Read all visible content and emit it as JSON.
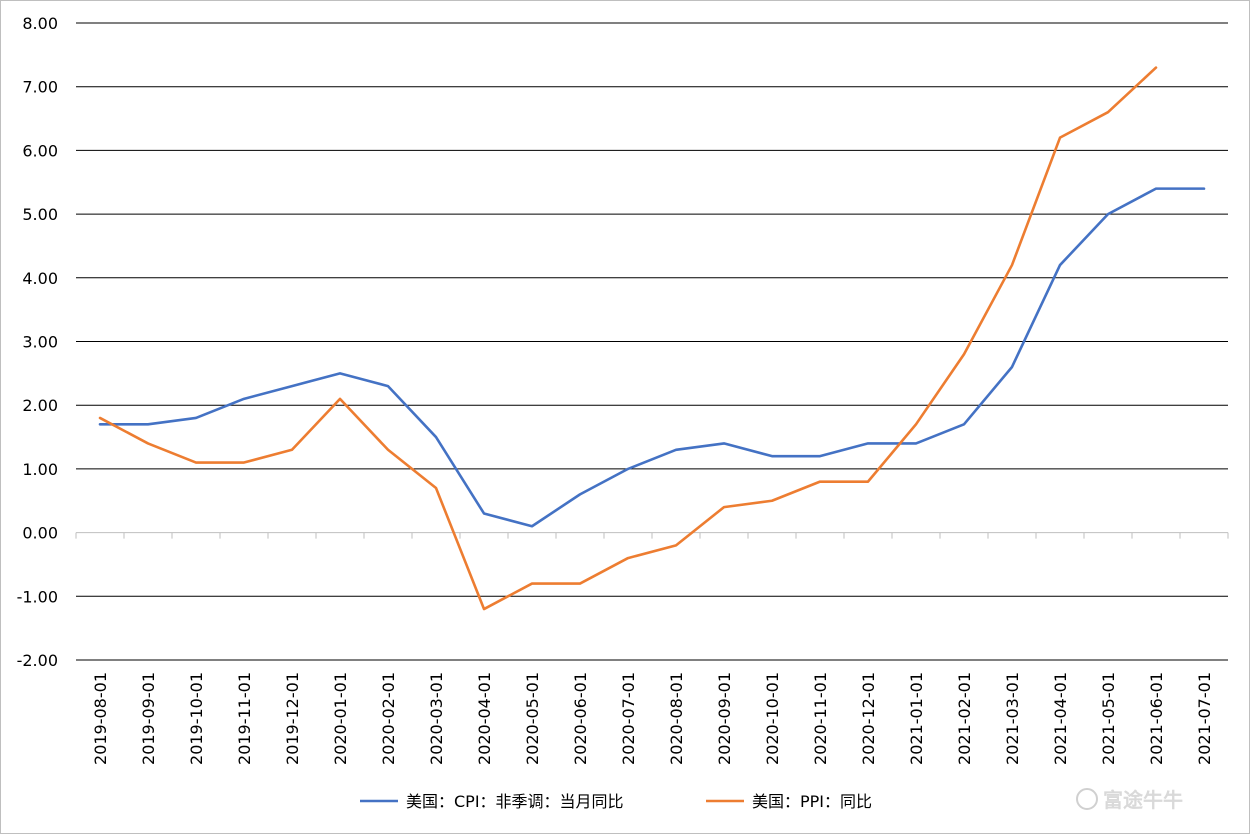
{
  "chart_data": {
    "type": "line",
    "title": "",
    "xlabel": "",
    "ylabel": "",
    "ylim": [
      -2,
      8
    ],
    "yticks": [
      "-2.00",
      "-1.00",
      "0.00",
      "1.00",
      "2.00",
      "3.00",
      "4.00",
      "5.00",
      "6.00",
      "7.00",
      "8.00"
    ],
    "grid": true,
    "legend_position": "bottom",
    "categories": [
      "2019-08-01",
      "2019-09-01",
      "2019-10-01",
      "2019-11-01",
      "2019-12-01",
      "2020-01-01",
      "2020-02-01",
      "2020-03-01",
      "2020-04-01",
      "2020-05-01",
      "2020-06-01",
      "2020-07-01",
      "2020-08-01",
      "2020-09-01",
      "2020-10-01",
      "2020-11-01",
      "2020-12-01",
      "2021-01-01",
      "2021-02-01",
      "2021-03-01",
      "2021-04-01",
      "2021-05-01",
      "2021-06-01",
      "2021-07-01"
    ],
    "series": [
      {
        "name": "美国：CPI：非季调：当月同比",
        "color": "#4472c4",
        "values": [
          1.7,
          1.7,
          1.8,
          2.1,
          2.3,
          2.5,
          2.3,
          1.5,
          0.3,
          0.1,
          0.6,
          1.0,
          1.3,
          1.4,
          1.2,
          1.2,
          1.4,
          1.4,
          1.7,
          2.6,
          4.2,
          5.0,
          5.4,
          5.4
        ]
      },
      {
        "name": "美国：PPI：同比",
        "color": "#ed7d31",
        "values": [
          1.8,
          1.4,
          1.1,
          1.1,
          1.3,
          2.1,
          1.3,
          0.7,
          -1.2,
          -0.8,
          -0.8,
          -0.4,
          -0.2,
          0.4,
          0.5,
          0.8,
          0.8,
          1.7,
          2.8,
          4.2,
          6.2,
          6.6,
          7.3,
          null
        ]
      }
    ]
  },
  "watermark": {
    "brand_text": "富途牛牛"
  }
}
